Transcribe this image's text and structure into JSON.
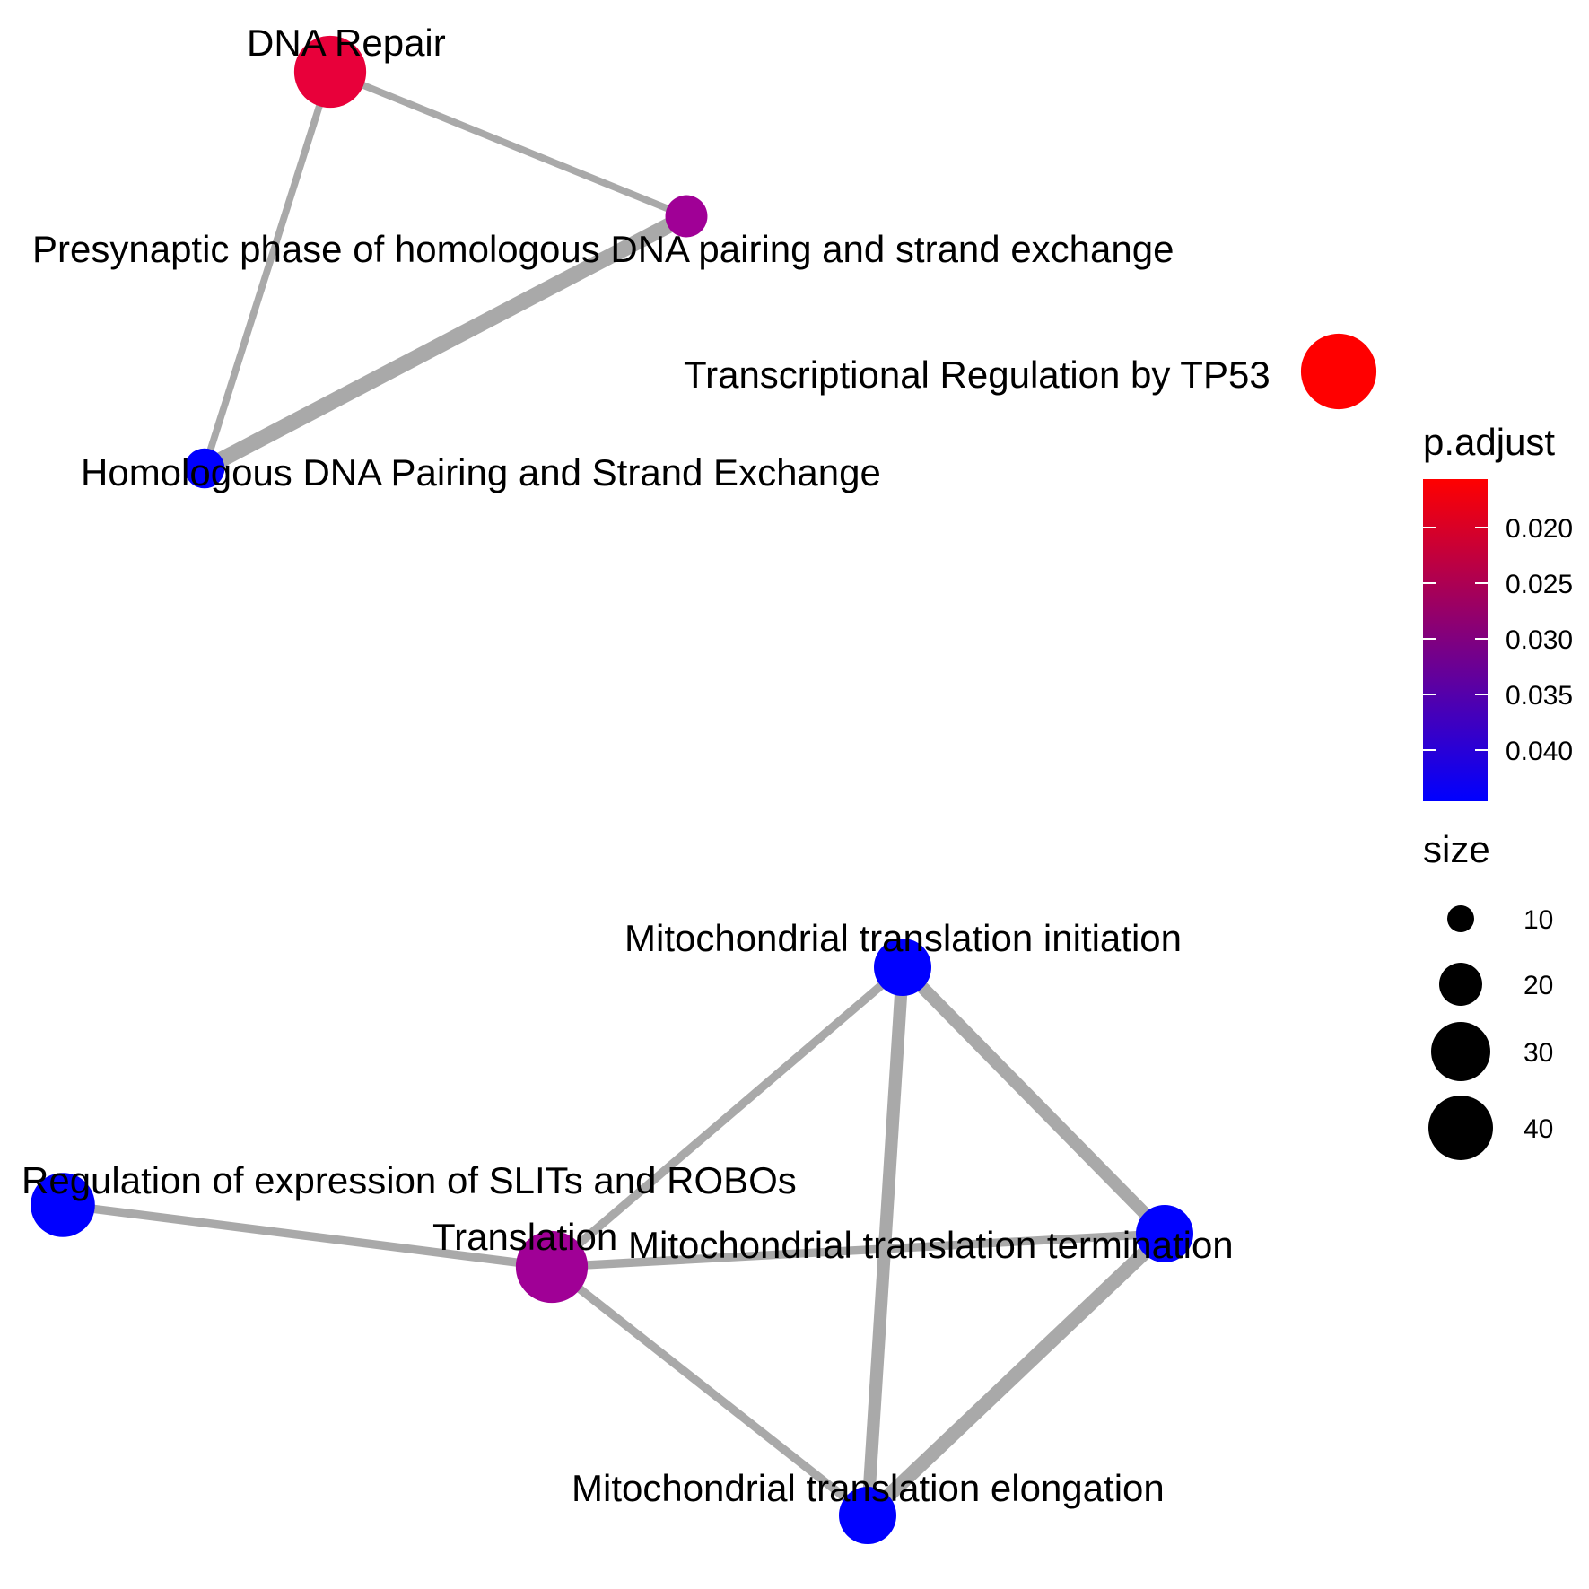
{
  "diagram": {
    "type": "enrichment-network",
    "edge_color": "#a9a9a9",
    "nodes": [
      {
        "id": "dna-repair",
        "label": "DNA Repair",
        "p_adjust": 0.018,
        "size": 30,
        "color": "#e8003a"
      },
      {
        "id": "presynaptic",
        "label": "Presynaptic phase of homologous DNA pairing and strand exchange",
        "p_adjust": 0.032,
        "size": 6,
        "color": "#a00096"
      },
      {
        "id": "homologous",
        "label": "Homologous DNA Pairing and Strand Exchange",
        "p_adjust": 0.044,
        "size": 5,
        "color": "#0000ff"
      },
      {
        "id": "tp53",
        "label": "Transcriptional Regulation by TP53",
        "p_adjust": 0.016,
        "size": 34,
        "color": "#ff0000"
      },
      {
        "id": "mito-init",
        "label": "Mitochondrial translation initiation",
        "p_adjust": 0.044,
        "size": 16,
        "color": "#0000ff"
      },
      {
        "id": "slits",
        "label": "Regulation of expression of SLITs and ROBOs",
        "p_adjust": 0.044,
        "size": 22,
        "color": "#0000ff"
      },
      {
        "id": "translation",
        "label": "Translation",
        "p_adjust": 0.033,
        "size": 30,
        "color": "#a00096"
      },
      {
        "id": "mito-term",
        "label": "Mitochondrial translation termination",
        "p_adjust": 0.044,
        "size": 16,
        "color": "#0000ff"
      },
      {
        "id": "mito-elong",
        "label": "Mitochondrial translation elongation",
        "p_adjust": 0.044,
        "size": 16,
        "color": "#0000ff"
      }
    ],
    "edges": [
      {
        "source": "dna-repair",
        "target": "presynaptic",
        "weight": 0.3
      },
      {
        "source": "dna-repair",
        "target": "homologous",
        "weight": 0.3
      },
      {
        "source": "presynaptic",
        "target": "homologous",
        "weight": 0.9
      },
      {
        "source": "mito-init",
        "target": "translation",
        "weight": 0.4
      },
      {
        "source": "mito-init",
        "target": "mito-term",
        "weight": 0.7
      },
      {
        "source": "mito-init",
        "target": "mito-elong",
        "weight": 0.7
      },
      {
        "source": "slits",
        "target": "translation",
        "weight": 0.4
      },
      {
        "source": "translation",
        "target": "mito-term",
        "weight": 0.4
      },
      {
        "source": "translation",
        "target": "mito-elong",
        "weight": 0.4
      },
      {
        "source": "mito-term",
        "target": "mito-elong",
        "weight": 0.8
      }
    ]
  },
  "legend": {
    "color": {
      "title": "p.adjust",
      "low_color": "#0000ff",
      "high_color": "#ff0000",
      "ticks": [
        "0.020",
        "0.025",
        "0.030",
        "0.035",
        "0.040"
      ]
    },
    "size": {
      "title": "size",
      "entries": [
        {
          "label": "10",
          "value": 10
        },
        {
          "label": "20",
          "value": 20
        },
        {
          "label": "30",
          "value": 30
        },
        {
          "label": "40",
          "value": 40
        }
      ]
    }
  }
}
